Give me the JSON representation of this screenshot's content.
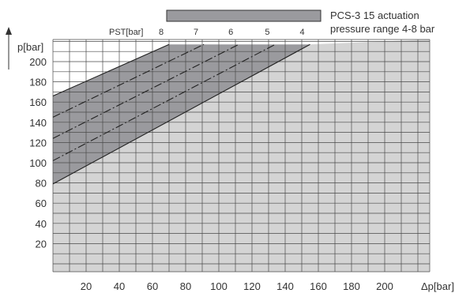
{
  "chart_data": {
    "type": "area",
    "title": "",
    "xlabel": "Δp[bar]",
    "ylabel": "p[bar]",
    "xlim": [
      0,
      220
    ],
    "ylim": [
      0,
      217
    ],
    "x_ticks": [
      20,
      40,
      60,
      80,
      100,
      120,
      140,
      160,
      180,
      200
    ],
    "y_ticks": [
      20,
      40,
      60,
      80,
      100,
      120,
      140,
      160,
      180,
      200
    ],
    "grid": true,
    "legend": {
      "position": "top-right",
      "label_line1": "PCS-3 15 actuation",
      "label_line2": "pressure range 4-8 bar",
      "color": "#9a9a9e"
    },
    "pst_label": "PST[bar]",
    "pst_lines": [
      {
        "label": "8",
        "x": [
          0,
          70
        ],
        "y": [
          166,
          217
        ],
        "style": "solid"
      },
      {
        "label": "7",
        "x": [
          0,
          91
        ],
        "y": [
          145,
          217
        ],
        "style": "dashdot"
      },
      {
        "label": "6",
        "x": [
          0,
          112
        ],
        "y": [
          124,
          217
        ],
        "style": "dashdot"
      },
      {
        "label": "5",
        "x": [
          0,
          134
        ],
        "y": [
          102,
          217
        ],
        "style": "dashdot"
      },
      {
        "label": "4",
        "x": [
          0,
          155
        ],
        "y": [
          79,
          217
        ],
        "style": "solid"
      }
    ],
    "colors": {
      "band": "#9a9a9e",
      "below_band": "#d4d4d4",
      "grid_line": "#4a4a4a",
      "line": "#222222"
    }
  }
}
